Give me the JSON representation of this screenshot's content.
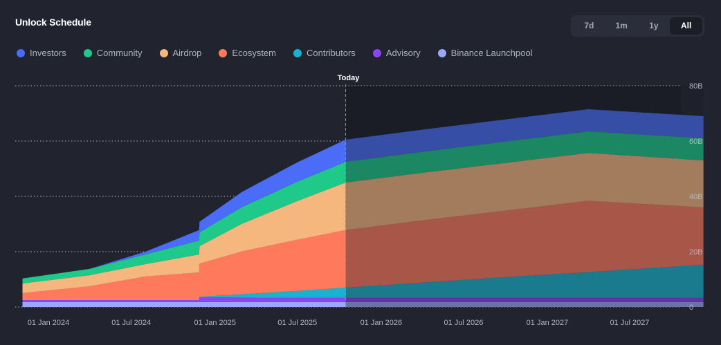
{
  "header": {
    "title": "Unlock Schedule",
    "ranges": [
      {
        "label": "7d",
        "active": false
      },
      {
        "label": "1m",
        "active": false
      },
      {
        "label": "1y",
        "active": false
      },
      {
        "label": "All",
        "active": true
      }
    ]
  },
  "legend": [
    {
      "name": "Investors",
      "color": "#4a6cf7"
    },
    {
      "name": "Community",
      "color": "#1ec98a"
    },
    {
      "name": "Airdrop",
      "color": "#f5b77e"
    },
    {
      "name": "Ecosystem",
      "color": "#ff7a5c"
    },
    {
      "name": "Contributors",
      "color": "#1ab3cf"
    },
    {
      "name": "Advisory",
      "color": "#8b45f5"
    },
    {
      "name": "Binance Launchpool",
      "color": "#9aa8f5"
    }
  ],
  "chart_data": {
    "type": "area",
    "stacked": true,
    "title": "Unlock Schedule",
    "xlabel": "",
    "ylabel": "",
    "ylim": [
      0,
      80
    ],
    "y_unit": "B",
    "y_ticks": [
      "0",
      "20B",
      "40B",
      "60B",
      "80B"
    ],
    "x_ticks": [
      "01 Jan 2024",
      "01 Jul 2024",
      "01 Jan 2025",
      "01 Jul 2025",
      "01 Jan 2026",
      "01 Jul 2026",
      "01 Jan 2027",
      "01 Jul 2027"
    ],
    "x_range": [
      "2023-11-05",
      "2027-12-10"
    ],
    "today_marker": {
      "label": "Today",
      "date": "2025-10-15"
    },
    "grid": "horizontal dotted",
    "legend_position": "top-left",
    "x": [
      "2023-11-05",
      "2024-04-01",
      "2024-08-01",
      "2024-11-27",
      "2024-11-28",
      "2025-03-01",
      "2025-07-01",
      "2025-10-15",
      "2026-04-01",
      "2026-10-01",
      "2027-04-01",
      "2027-12-10"
    ],
    "series": [
      {
        "name": "Binance Launchpool",
        "values": [
          1.8,
          1.8,
          1.8,
          1.8,
          1.8,
          1.8,
          1.8,
          1.8,
          1.8,
          1.8,
          1.8,
          1.8
        ]
      },
      {
        "name": "Advisory",
        "values": [
          0.7,
          0.7,
          0.7,
          0.7,
          1.7,
          1.6,
          1.5,
          1.5,
          1.5,
          1.5,
          1.5,
          1.5
        ]
      },
      {
        "name": "Contributors",
        "values": [
          0.0,
          0.0,
          0.0,
          0.0,
          0.2,
          1.2,
          2.5,
          3.7,
          5.5,
          7.5,
          9.3,
          12.0
        ]
      },
      {
        "name": "Ecosystem",
        "values": [
          2.5,
          5.0,
          8.5,
          10.0,
          12.0,
          15.5,
          18.5,
          20.8,
          22.5,
          24.0,
          25.8,
          20.7
        ]
      },
      {
        "name": "Airdrop",
        "values": [
          3.5,
          4.0,
          4.5,
          6.5,
          6.3,
          10.0,
          14.0,
          17.2,
          17.2,
          17.3,
          17.3,
          17.0
        ]
      },
      {
        "name": "Community",
        "values": [
          1.8,
          2.3,
          3.5,
          5.0,
          5.0,
          6.0,
          7.0,
          7.5,
          7.6,
          7.7,
          7.8,
          8.0
        ]
      },
      {
        "name": "Investors",
        "values": [
          0.0,
          0.0,
          1.0,
          3.8,
          3.8,
          5.5,
          7.0,
          8.0,
          8.0,
          8.0,
          8.0,
          8.0
        ]
      }
    ]
  }
}
